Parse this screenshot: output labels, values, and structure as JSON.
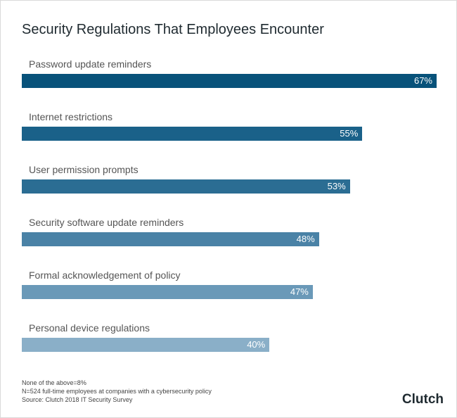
{
  "chart_data": {
    "type": "bar",
    "orientation": "horizontal",
    "title": "Security Regulations That Employees Encounter",
    "categories": [
      "Password update reminders",
      "Internet restrictions",
      "User permission prompts",
      "Security software update reminders",
      "Formal acknowledgement of policy",
      "Personal device regulations"
    ],
    "values": [
      67,
      55,
      53,
      48,
      47,
      40
    ],
    "value_labels": [
      "67%",
      "55%",
      "53%",
      "48%",
      "47%",
      "40%"
    ],
    "colors": [
      "#08527a",
      "#1a6189",
      "#2b6d93",
      "#4a82a6",
      "#6a99b8",
      "#8aafc8"
    ],
    "xlim": [
      0,
      67
    ],
    "grid": false
  },
  "notes": [
    "None of the above=8%",
    "N=524 full-time employees at companies with a cybersecurity policy",
    "Source: Clutch 2018 IT Security Survey"
  ],
  "logo": "Clutch"
}
